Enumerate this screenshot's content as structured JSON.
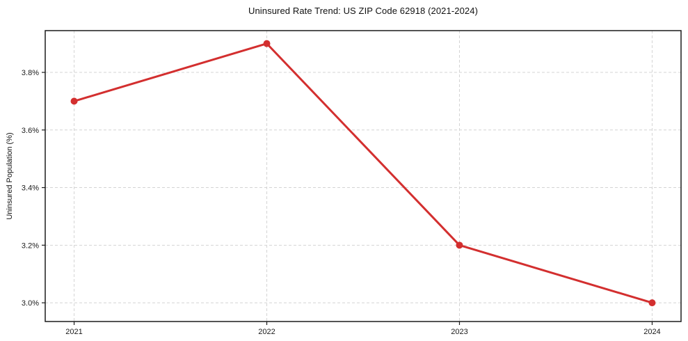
{
  "chart_data": {
    "type": "line",
    "title": "Uninsured Rate Trend: US ZIP Code 62918 (2021-2024)",
    "xlabel": "",
    "ylabel": "Uninsured Population (%)",
    "x": [
      2021,
      2022,
      2023,
      2024
    ],
    "series": [
      {
        "name": "Uninsured Population (%)",
        "values": [
          3.7,
          3.9,
          3.2,
          3.0
        ]
      }
    ],
    "xlim": [
      2020.85,
      2024.15
    ],
    "ylim": [
      2.935,
      3.945
    ],
    "xticks": {
      "values": [
        2021,
        2022,
        2023,
        2024
      ],
      "labels": [
        "2021",
        "2022",
        "2023",
        "2024"
      ]
    },
    "yticks": {
      "values": [
        3.0,
        3.2,
        3.4,
        3.6,
        3.8
      ],
      "labels": [
        "3.0%",
        "3.2%",
        "3.4%",
        "3.6%",
        "3.8%"
      ]
    },
    "grid": true,
    "grid_style": "dashed",
    "legend": "none",
    "colors": {
      "line": "#d32f2f",
      "marker": "#d32f2f",
      "grid": "#d4d4d4",
      "axis": "#1a1a1a",
      "background": "#ffffff",
      "text": "#111111"
    }
  }
}
